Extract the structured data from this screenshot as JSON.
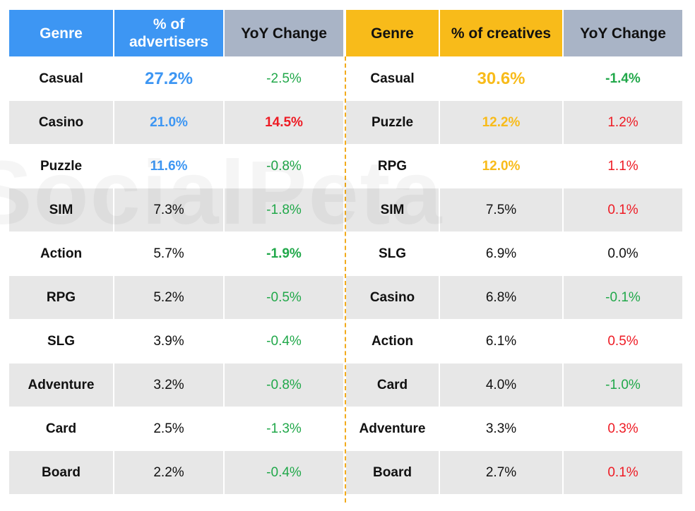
{
  "chart_data": {
    "type": "table",
    "watermark": "SocialPeta",
    "colors": {
      "advertisers_accent": "#3d96f3",
      "creatives_accent": "#f8bb1a",
      "yoy_header": "#a9b4c6",
      "increase": "#ee1b24",
      "decrease": "#21a84a",
      "divider": "#f2ab1c"
    },
    "tables": [
      {
        "columns": [
          "Genre",
          "% of advertisers",
          "YoY Change"
        ],
        "rows": [
          {
            "genre": "Casual",
            "share": "27.2%",
            "yoy": "-2.5%"
          },
          {
            "genre": "Casino",
            "share": "21.0%",
            "yoy": "14.5%"
          },
          {
            "genre": "Puzzle",
            "share": "11.6%",
            "yoy": "-0.8%"
          },
          {
            "genre": "SIM",
            "share": "7.3%",
            "yoy": "-1.8%"
          },
          {
            "genre": "Action",
            "share": "5.7%",
            "yoy": "-1.9%"
          },
          {
            "genre": "RPG",
            "share": "5.2%",
            "yoy": "-0.5%"
          },
          {
            "genre": "SLG",
            "share": "3.9%",
            "yoy": "-0.4%"
          },
          {
            "genre": "Adventure",
            "share": "3.2%",
            "yoy": "-0.8%"
          },
          {
            "genre": "Card",
            "share": "2.5%",
            "yoy": "-1.3%"
          },
          {
            "genre": "Board",
            "share": "2.2%",
            "yoy": "-0.4%"
          }
        ]
      },
      {
        "columns": [
          "Genre",
          "% of creatives",
          "YoY Change"
        ],
        "rows": [
          {
            "genre": "Casual",
            "share": "30.6%",
            "yoy": "-1.4%"
          },
          {
            "genre": "Puzzle",
            "share": "12.2%",
            "yoy": "1.2%"
          },
          {
            "genre": "RPG",
            "share": "12.0%",
            "yoy": "1.1%"
          },
          {
            "genre": "SIM",
            "share": "7.5%",
            "yoy": "0.1%"
          },
          {
            "genre": "SLG",
            "share": "6.9%",
            "yoy": "0.0%"
          },
          {
            "genre": "Casino",
            "share": "6.8%",
            "yoy": "-0.1%"
          },
          {
            "genre": "Action",
            "share": "6.1%",
            "yoy": "0.5%"
          },
          {
            "genre": "Card",
            "share": "4.0%",
            "yoy": "-1.0%"
          },
          {
            "genre": "Adventure",
            "share": "3.3%",
            "yoy": "0.3%"
          },
          {
            "genre": "Board",
            "share": "2.7%",
            "yoy": "0.1%"
          }
        ]
      }
    ]
  }
}
